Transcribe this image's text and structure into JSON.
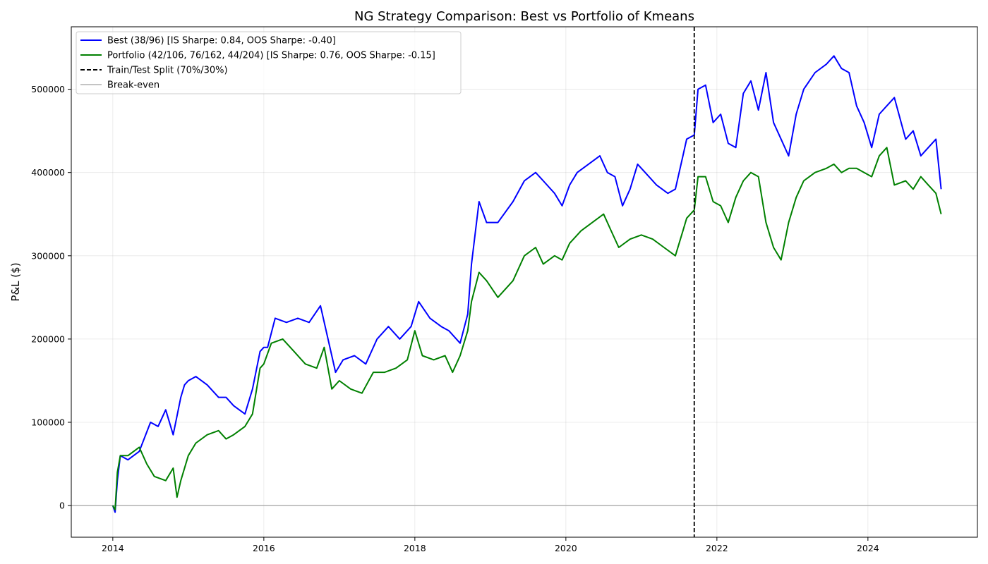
{
  "chart_data": {
    "type": "line",
    "title": "NG Strategy Comparison: Best vs Portfolio of Kmeans",
    "xlabel": "",
    "ylabel": "P&L ($)",
    "xlim": [
      2013.45,
      2025.45
    ],
    "ylim": [
      -38000,
      575000
    ],
    "grid": true,
    "legend_position": "top-left",
    "x_ticks": [
      2014,
      2016,
      2018,
      2020,
      2022,
      2024
    ],
    "x_tick_labels": [
      "2014",
      "2016",
      "2018",
      "2020",
      "2022",
      "2024"
    ],
    "y_ticks": [
      0,
      100000,
      200000,
      300000,
      400000,
      500000
    ],
    "y_tick_labels": [
      "0",
      "100000",
      "200000",
      "300000",
      "400000",
      "500000"
    ],
    "series": [
      {
        "name": "Best (38/96) [IS Sharpe: 0.84, OOS Sharpe: -0.40]",
        "color": "#0000ff",
        "x": [
          2014.0,
          2014.03,
          2014.06,
          2014.1,
          2014.2,
          2014.35,
          2014.5,
          2014.6,
          2014.7,
          2014.8,
          2014.9,
          2014.95,
          2015.0,
          2015.1,
          2015.25,
          2015.4,
          2015.5,
          2015.6,
          2015.75,
          2015.85,
          2015.95,
          2016.0,
          2016.05,
          2016.15,
          2016.3,
          2016.45,
          2016.6,
          2016.75,
          2016.85,
          2016.95,
          2017.05,
          2017.2,
          2017.35,
          2017.5,
          2017.65,
          2017.8,
          2017.95,
          2018.05,
          2018.2,
          2018.35,
          2018.45,
          2018.6,
          2018.7,
          2018.75,
          2018.85,
          2018.95,
          2019.1,
          2019.3,
          2019.45,
          2019.6,
          2019.7,
          2019.85,
          2019.95,
          2020.05,
          2020.15,
          2020.3,
          2020.45,
          2020.55,
          2020.65,
          2020.75,
          2020.85,
          2020.95,
          2021.05,
          2021.2,
          2021.35,
          2021.45,
          2021.55,
          2021.6,
          2021.7,
          2021.75,
          2021.85,
          2021.95,
          2022.05,
          2022.15,
          2022.25,
          2022.35,
          2022.45,
          2022.55,
          2022.65,
          2022.75,
          2022.85,
          2022.95,
          2023.05,
          2023.15,
          2023.3,
          2023.45,
          2023.55,
          2023.65,
          2023.75,
          2023.85,
          2023.95,
          2024.05,
          2024.15,
          2024.25,
          2024.35,
          2024.5,
          2024.6,
          2024.7,
          2024.8,
          2024.9,
          2024.97
        ],
        "values": [
          0,
          -8000,
          30000,
          60000,
          55000,
          65000,
          100000,
          95000,
          115000,
          85000,
          130000,
          145000,
          150000,
          155000,
          145000,
          130000,
          130000,
          120000,
          110000,
          140000,
          185000,
          190000,
          190000,
          225000,
          220000,
          225000,
          220000,
          240000,
          200000,
          160000,
          175000,
          180000,
          170000,
          200000,
          215000,
          200000,
          215000,
          245000,
          225000,
          215000,
          210000,
          195000,
          230000,
          290000,
          365000,
          340000,
          340000,
          365000,
          390000,
          400000,
          390000,
          375000,
          360000,
          385000,
          400000,
          410000,
          420000,
          400000,
          395000,
          360000,
          380000,
          410000,
          400000,
          385000,
          375000,
          380000,
          420000,
          440000,
          445000,
          500000,
          505000,
          460000,
          470000,
          435000,
          430000,
          495000,
          510000,
          475000,
          520000,
          460000,
          440000,
          420000,
          470000,
          500000,
          520000,
          530000,
          540000,
          525000,
          520000,
          480000,
          460000,
          430000,
          470000,
          480000,
          490000,
          440000,
          450000,
          420000,
          430000,
          440000,
          380000
        ]
      },
      {
        "name": "Portfolio (42/106, 76/162, 44/204) [IS Sharpe: 0.76, OOS Sharpe: -0.15]",
        "color": "#008000",
        "x": [
          2014.0,
          2014.03,
          2014.06,
          2014.1,
          2014.2,
          2014.35,
          2014.45,
          2014.55,
          2014.7,
          2014.8,
          2014.85,
          2014.9,
          2015.0,
          2015.1,
          2015.25,
          2015.4,
          2015.5,
          2015.6,
          2015.75,
          2015.85,
          2015.95,
          2016.0,
          2016.1,
          2016.25,
          2016.4,
          2016.55,
          2016.7,
          2016.8,
          2016.9,
          2017.0,
          2017.15,
          2017.3,
          2017.45,
          2017.6,
          2017.75,
          2017.9,
          2018.0,
          2018.1,
          2018.25,
          2018.4,
          2018.5,
          2018.6,
          2018.7,
          2018.75,
          2018.85,
          2018.95,
          2019.1,
          2019.3,
          2019.45,
          2019.6,
          2019.7,
          2019.85,
          2019.95,
          2020.05,
          2020.2,
          2020.35,
          2020.5,
          2020.6,
          2020.7,
          2020.85,
          2021.0,
          2021.15,
          2021.3,
          2021.45,
          2021.55,
          2021.6,
          2021.7,
          2021.75,
          2021.85,
          2021.95,
          2022.05,
          2022.15,
          2022.25,
          2022.35,
          2022.45,
          2022.55,
          2022.65,
          2022.75,
          2022.85,
          2022.95,
          2023.05,
          2023.15,
          2023.3,
          2023.45,
          2023.55,
          2023.65,
          2023.75,
          2023.85,
          2023.95,
          2024.05,
          2024.15,
          2024.25,
          2024.35,
          2024.5,
          2024.6,
          2024.7,
          2024.8,
          2024.9,
          2024.97
        ],
        "values": [
          0,
          -5000,
          40000,
          60000,
          60000,
          70000,
          50000,
          35000,
          30000,
          45000,
          10000,
          30000,
          60000,
          75000,
          85000,
          90000,
          80000,
          85000,
          95000,
          110000,
          165000,
          170000,
          195000,
          200000,
          185000,
          170000,
          165000,
          190000,
          140000,
          150000,
          140000,
          135000,
          160000,
          160000,
          165000,
          175000,
          210000,
          180000,
          175000,
          180000,
          160000,
          180000,
          210000,
          245000,
          280000,
          270000,
          250000,
          270000,
          300000,
          310000,
          290000,
          300000,
          295000,
          315000,
          330000,
          340000,
          350000,
          330000,
          310000,
          320000,
          325000,
          320000,
          310000,
          300000,
          330000,
          345000,
          355000,
          395000,
          395000,
          365000,
          360000,
          340000,
          370000,
          390000,
          400000,
          395000,
          340000,
          310000,
          295000,
          340000,
          370000,
          390000,
          400000,
          405000,
          410000,
          400000,
          405000,
          405000,
          400000,
          395000,
          420000,
          430000,
          385000,
          390000,
          380000,
          395000,
          385000,
          375000,
          350000
        ]
      }
    ],
    "reference_lines": [
      {
        "name": "Train/Test Split (70%/30%)",
        "orientation": "vertical",
        "x": 2021.7,
        "color": "#000000",
        "style": "dashed"
      },
      {
        "name": "Break-even",
        "orientation": "horizontal",
        "y": 0,
        "color": "#b0b0b0",
        "style": "solid"
      }
    ]
  }
}
